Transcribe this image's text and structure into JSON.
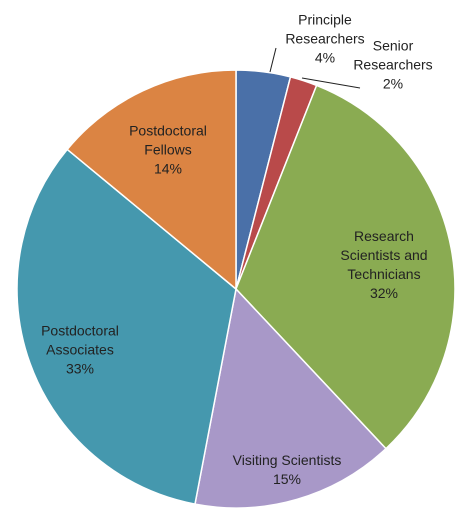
{
  "chart_data": {
    "type": "pie",
    "categories": [
      "Principle Researchers",
      "Senior Researchers",
      "Research Scientists and Technicians",
      "Visiting Scientists",
      "Postdoctoral Associates",
      "Postdoctoral Fellows"
    ],
    "values": [
      4,
      2,
      32,
      15,
      33,
      14
    ],
    "value_labels": [
      "4%",
      "2%",
      "32%",
      "15%",
      "33%",
      "14%"
    ],
    "colors": [
      "#4a70a8",
      "#b94a4a",
      "#8aab52",
      "#a898c8",
      "#4598ae",
      "#db8443"
    ]
  }
}
